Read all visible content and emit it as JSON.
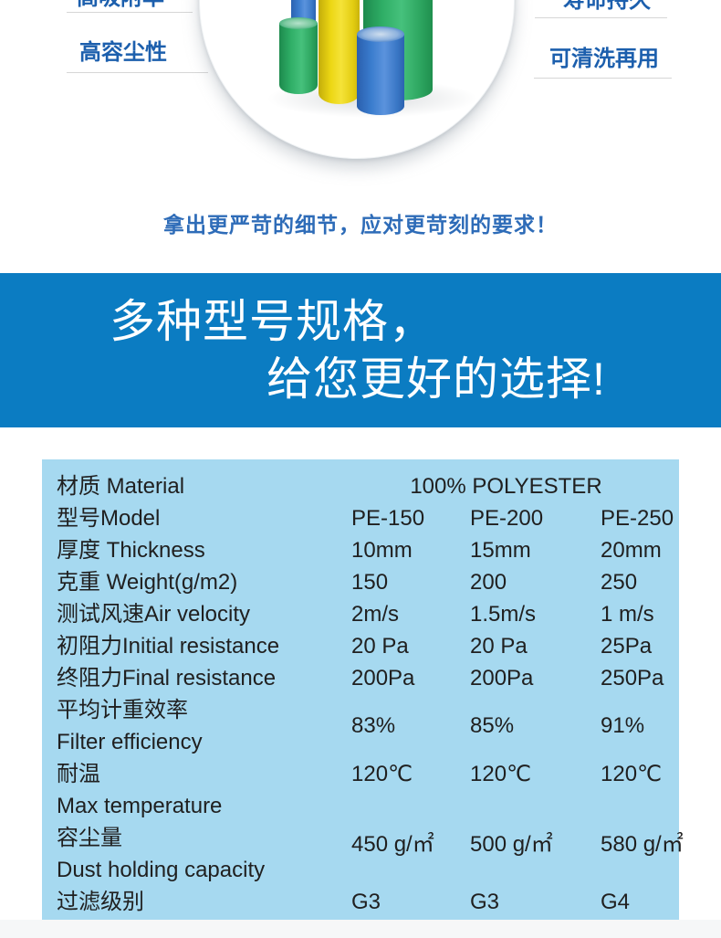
{
  "hero": {
    "features": [
      {
        "label": "高吸附率"
      },
      {
        "label": "高容尘性"
      },
      {
        "label": "寿命持久"
      },
      {
        "label": "可清洗再用"
      }
    ],
    "tagline": "拿出更严苛的细节，应对更苛刻的要求！",
    "label_color": "#1c5fad",
    "tagline_color": "#2e6cb8"
  },
  "product_image": {
    "subject": "filter-cotton-cylinders",
    "colors": {
      "green": "#2fae66",
      "yellow": "#ecd714",
      "blue": "#3a7ccd"
    }
  },
  "banner": {
    "line1": "多种型号规格，",
    "line2": "给您更好的选择!",
    "bg_color": "#0b7cc2",
    "text_color": "#ffffff"
  },
  "spec_table": {
    "bg_color": "#a6d9f0",
    "text_color": "#202020",
    "material": {
      "label": "材质 Material",
      "value": "100% POLYESTER"
    },
    "rows": [
      {
        "label": "型号Model",
        "values": [
          "PE-150",
          "PE-200",
          "PE-250"
        ]
      },
      {
        "label": "厚度 Thickness",
        "values": [
          "10mm",
          "15mm",
          "20mm"
        ]
      },
      {
        "label": "克重 Weight(g/m2)",
        "values": [
          "150",
          "200",
          "250"
        ]
      },
      {
        "label": "测试风速Air velocity",
        "values": [
          "2m/s",
          "1.5m/s",
          "1 m/s"
        ]
      },
      {
        "label": "初阻力Initial resistance",
        "values": [
          "20 Pa",
          "20 Pa",
          "25Pa"
        ]
      },
      {
        "label": "终阻力Final resistance",
        "values": [
          "200Pa",
          "200Pa",
          "250Pa"
        ]
      },
      {
        "label": "平均计重效率",
        "label2": "Filter efficiency",
        "values": [
          "83%",
          "85%",
          "91%"
        ]
      },
      {
        "label": "耐温",
        "label2": "Max temperature",
        "values": [
          "120℃",
          "120℃",
          "120℃"
        ]
      },
      {
        "label": "容尘量",
        "label2": "Dust holding capacity",
        "values": [
          "450 g/㎡",
          "500 g/㎡",
          "580 g/㎡"
        ]
      },
      {
        "label": "过滤级别",
        "values": [
          "G3",
          "G3",
          "G4"
        ]
      }
    ]
  }
}
